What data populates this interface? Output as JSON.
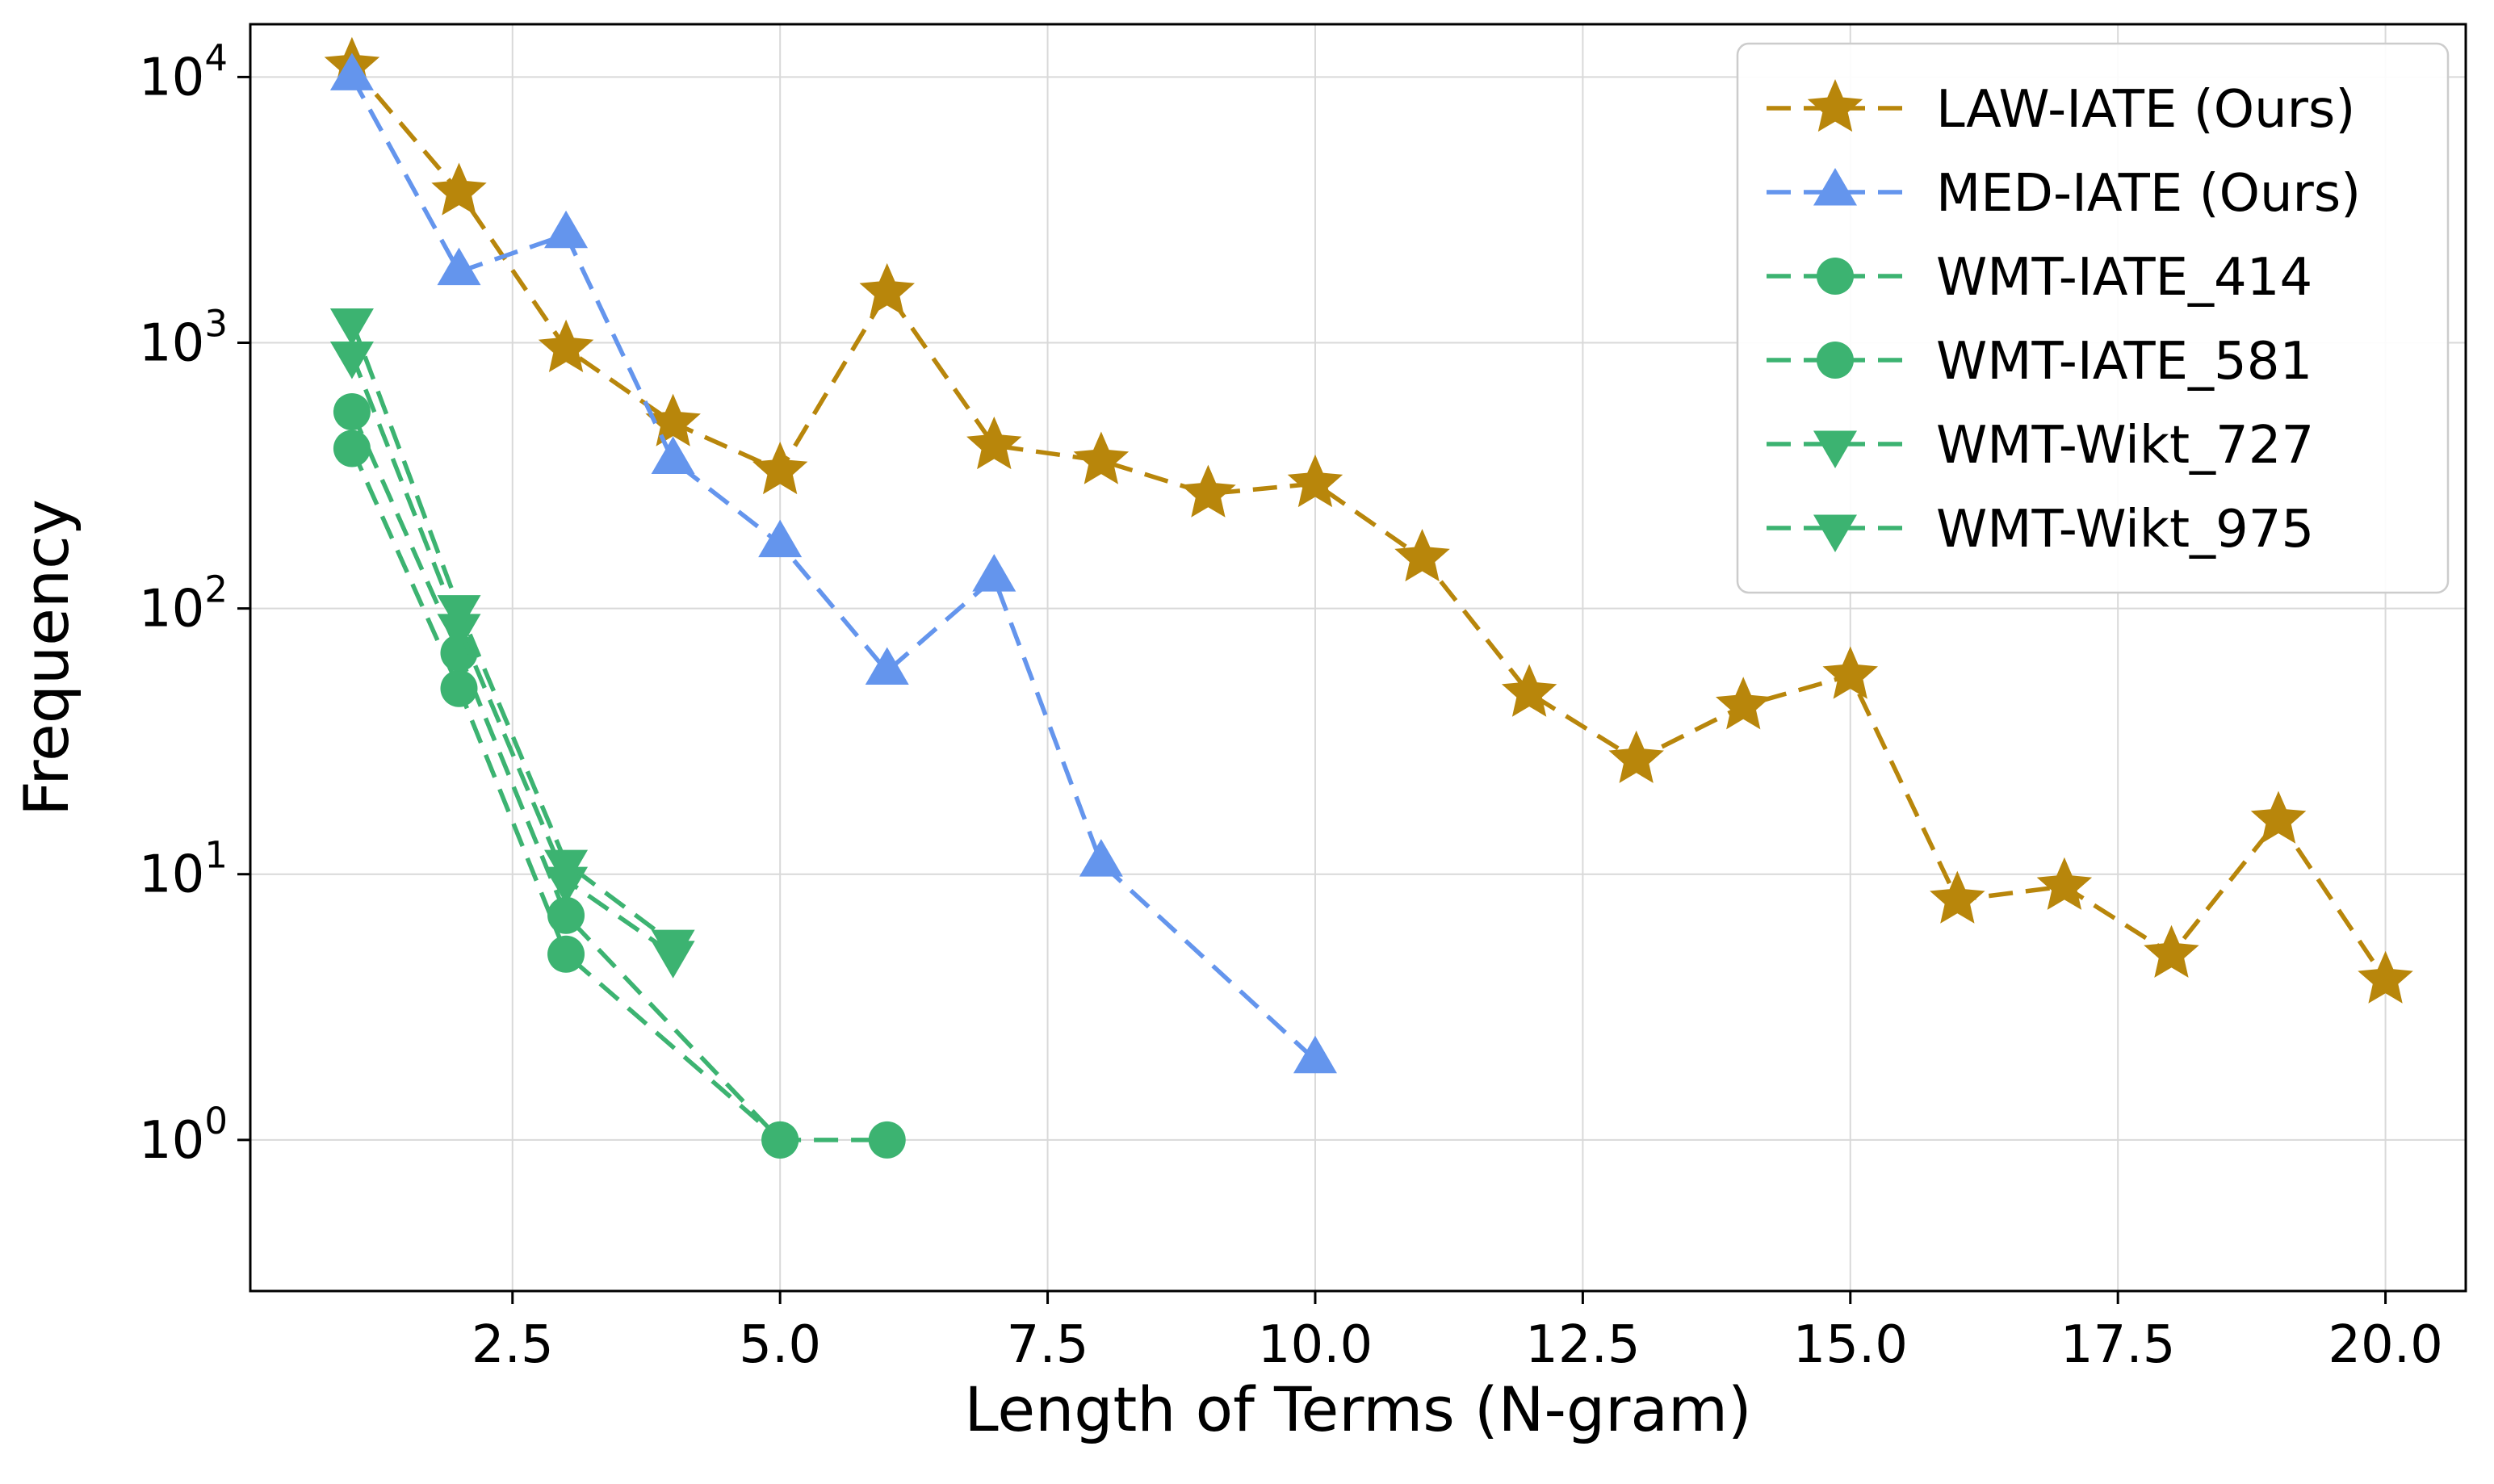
{
  "figure": {
    "background": "#ffffff",
    "grid_color": "#d9d9d9",
    "axis_color": "#000000",
    "legend_border_color": "#cccccc"
  },
  "chart_data": {
    "type": "line",
    "title": "",
    "xlabel": "Length of Terms (N-gram)",
    "ylabel": "Frequency",
    "yscale": "log",
    "grid": true,
    "legend_position": "upper right",
    "xlim": [
      0.05,
      20.75
    ],
    "ylim": [
      0.27,
      15800
    ],
    "x_ticks": [
      2.5,
      5.0,
      7.5,
      10.0,
      12.5,
      15.0,
      17.5,
      20.0
    ],
    "x_tick_labels": [
      "2.5",
      "5.0",
      "7.5",
      "10.0",
      "12.5",
      "15.0",
      "17.5",
      "20.0"
    ],
    "y_ticks": [
      1,
      10,
      100,
      1000,
      10000
    ],
    "series": [
      {
        "name": "LAW-IATE (Ours)",
        "color": "#b8860b",
        "marker": "star",
        "linestyle": "dashed",
        "x": [
          1,
          2,
          3,
          4,
          5,
          6,
          7,
          8,
          9,
          10,
          11,
          12,
          13,
          14,
          15,
          16,
          17,
          18,
          19,
          20
        ],
        "y": [
          11000,
          3700,
          950,
          500,
          330,
          1550,
          410,
          360,
          270,
          295,
          155,
          48,
          27,
          43,
          56,
          8,
          9,
          5,
          16,
          4
        ]
      },
      {
        "name": "MED-IATE (Ours)",
        "color": "#6495ed",
        "marker": "triangle-up",
        "linestyle": "dashed",
        "x": [
          1,
          2,
          3,
          4,
          5,
          6,
          7,
          8,
          10
        ],
        "y": [
          10000,
          1850,
          2550,
          360,
          175,
          58,
          130,
          11,
          2
        ]
      },
      {
        "name": "WMT-IATE_414",
        "color": "#3cb371",
        "marker": "circle",
        "linestyle": "dashed",
        "x": [
          1,
          2,
          3,
          5
        ],
        "y": [
          400,
          50,
          5,
          1
        ]
      },
      {
        "name": "WMT-IATE_581",
        "color": "#3cb371",
        "marker": "circle",
        "linestyle": "dashed",
        "x": [
          1,
          2,
          3,
          5,
          6
        ],
        "y": [
          550,
          68,
          7,
          1,
          1
        ]
      },
      {
        "name": "WMT-Wikt_727",
        "color": "#3cb371",
        "marker": "triangle-down",
        "linestyle": "dashed",
        "x": [
          1,
          2,
          3,
          4
        ],
        "y": [
          900,
          85,
          9.5,
          5
        ]
      },
      {
        "name": "WMT-Wikt_975",
        "color": "#3cb371",
        "marker": "triangle-down",
        "linestyle": "dashed",
        "x": [
          1,
          2,
          3,
          4
        ],
        "y": [
          1200,
          100,
          11,
          5.5
        ]
      }
    ]
  }
}
